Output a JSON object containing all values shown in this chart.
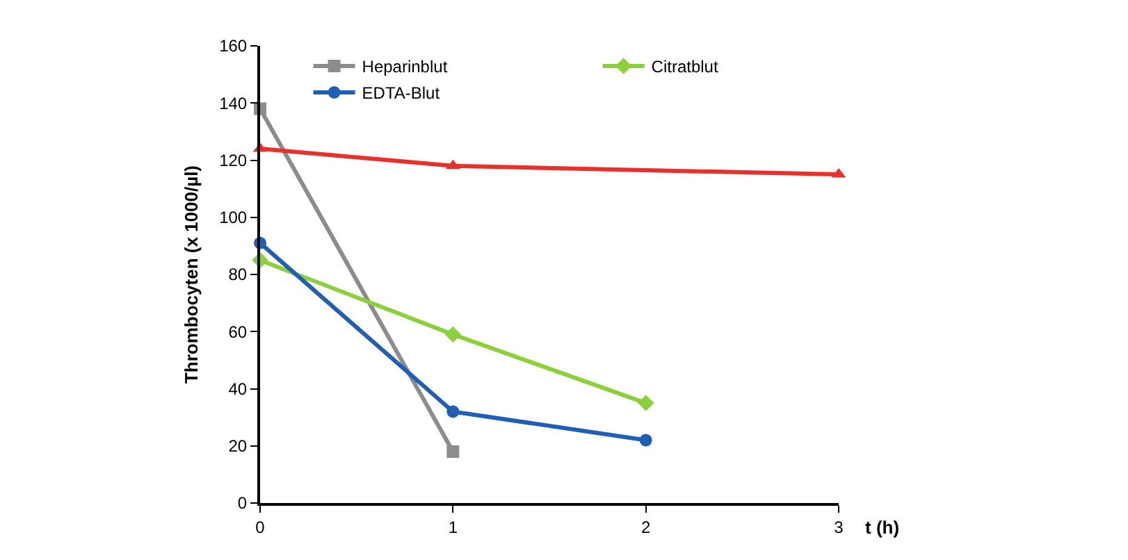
{
  "chart_data": {
    "type": "line",
    "xlabel": "t (h)",
    "ylabel": "Thrombocyten (x 1000/µl)",
    "xlim": [
      0,
      3
    ],
    "xticks": [
      0,
      1,
      2,
      3
    ],
    "ylim": [
      0,
      160
    ],
    "yticks": [
      0,
      20,
      40,
      60,
      80,
      100,
      120,
      140,
      160
    ],
    "legend": "top",
    "line_style": "solid",
    "series": [
      {
        "name": "Heparinblut",
        "color": "#8c8c8c",
        "marker": "square",
        "x": [
          0,
          1
        ],
        "values": [
          138,
          18
        ]
      },
      {
        "name": "Citratblut",
        "color": "#8cd03c",
        "marker": "diamond",
        "x": [
          0,
          1,
          2
        ],
        "values": [
          85,
          59,
          35
        ]
      },
      {
        "name": "EDTA-Blut",
        "color": "#1f5fb4",
        "marker": "circle",
        "x": [
          0,
          1,
          2
        ],
        "values": [
          91,
          32,
          22
        ]
      },
      {
        "color": "#e8312c",
        "marker": "triangle",
        "x": [
          0,
          1,
          3
        ],
        "values": [
          124,
          118,
          115
        ]
      }
    ]
  }
}
